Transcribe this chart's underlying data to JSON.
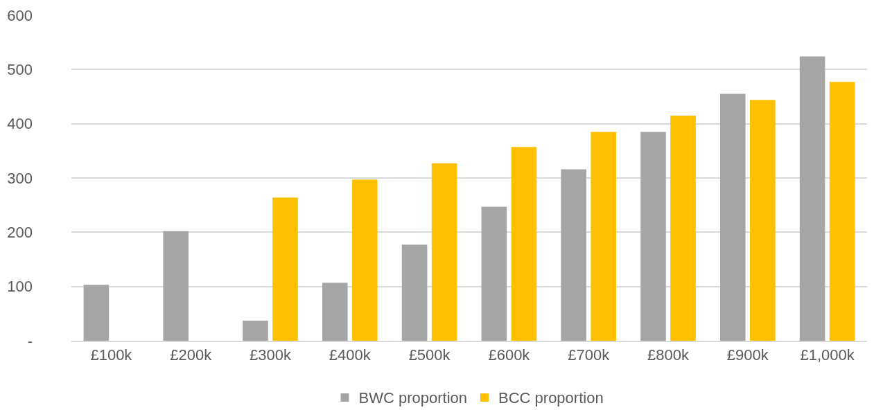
{
  "chart_data": {
    "type": "bar",
    "categories": [
      "£100k",
      "£200k",
      "£300k",
      "£400k",
      "£500k",
      "£600k",
      "£700k",
      "£800k",
      "£900k",
      "£1,000k"
    ],
    "series": [
      {
        "name": "BWC proportion",
        "color": "#a5a5a5",
        "values": [
          103,
          202,
          37,
          107,
          177,
          247,
          316,
          385,
          455,
          524
        ]
      },
      {
        "name": "BCC proportion",
        "color": "#ffc000",
        "values": [
          null,
          null,
          264,
          297,
          327,
          357,
          385,
          415,
          444,
          477
        ]
      }
    ],
    "ylim": [
      0,
      600
    ],
    "yticks": [
      {
        "value": 0,
        "label": "-"
      },
      100,
      200,
      300,
      400,
      500,
      600
    ],
    "grid": "y",
    "legend": "bottom"
  }
}
